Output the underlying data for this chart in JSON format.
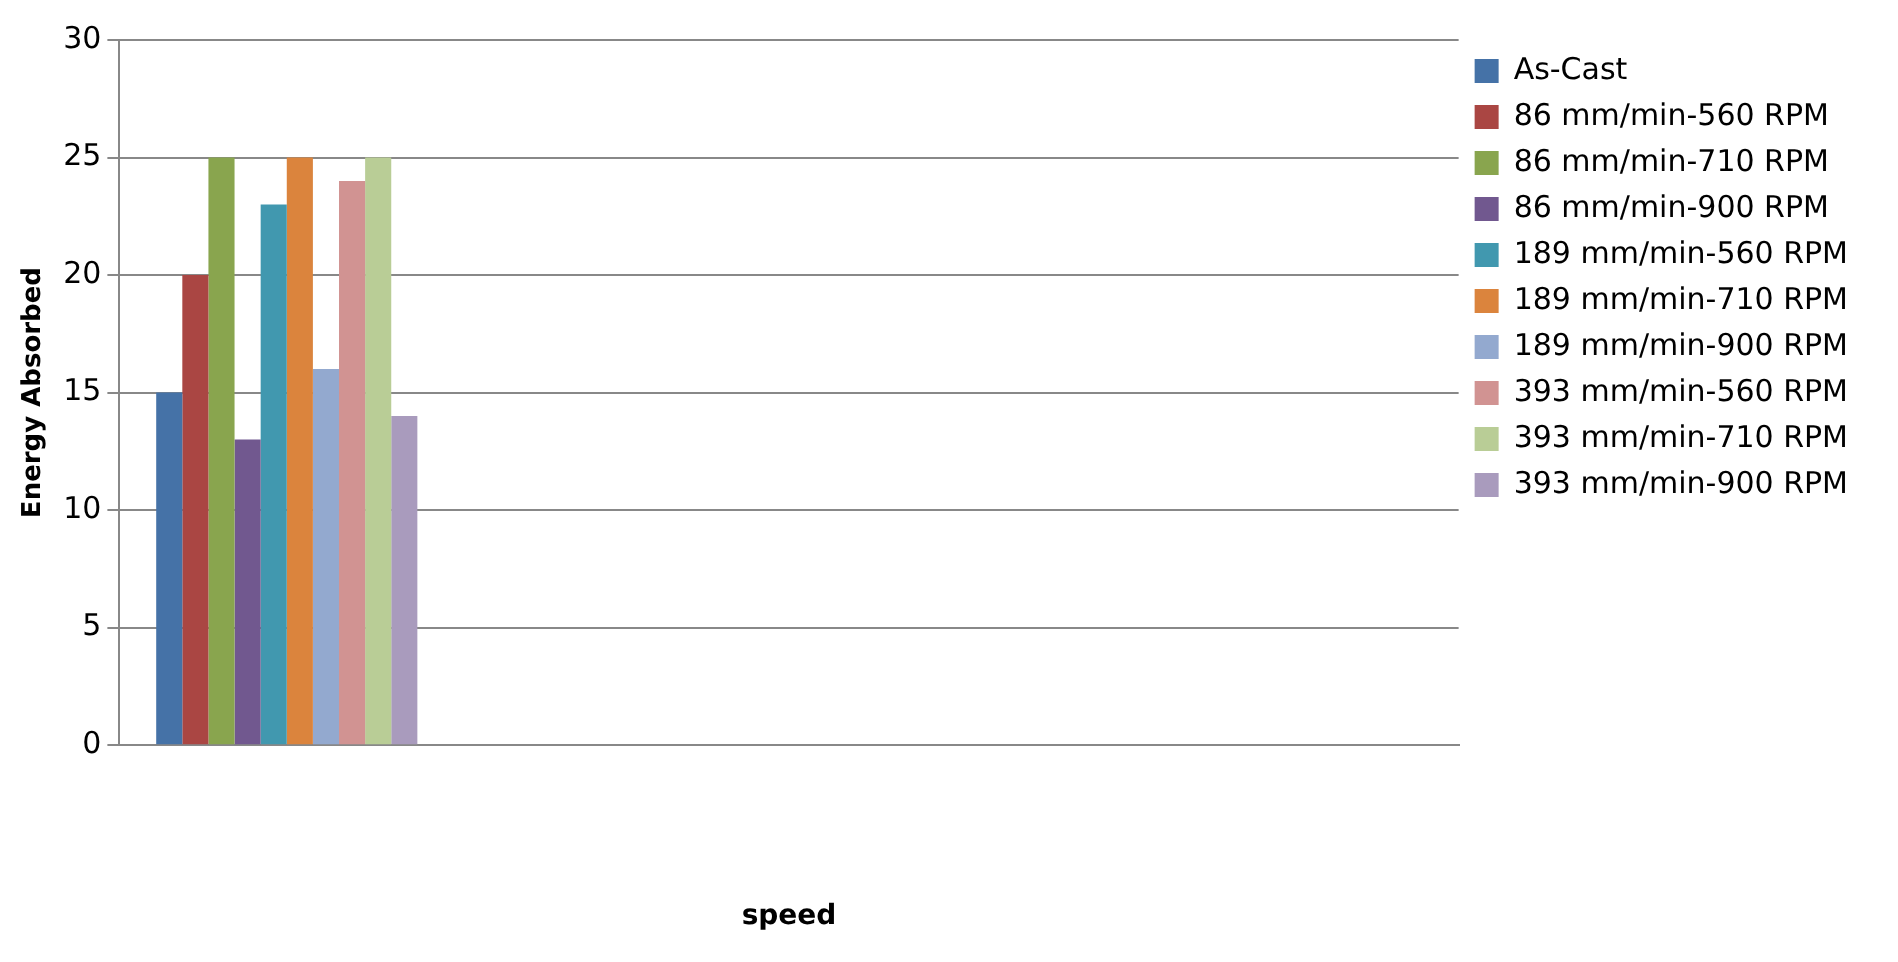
{
  "chart_data": {
    "type": "bar",
    "xlabel": "speed",
    "ylabel": "Energy Absorbed",
    "categories": [
      null,
      null,
      null,
      null
    ],
    "series": [
      {
        "name": "As-Cast",
        "color": "#4572a7",
        "values": [
          15,
          null,
          null,
          null
        ]
      },
      {
        "name": "86 mm/min-560 RPM",
        "color": "#aa4643",
        "values": [
          20,
          null,
          null,
          null
        ]
      },
      {
        "name": "86 mm/min-710 RPM",
        "color": "#89a54e",
        "values": [
          25,
          null,
          null,
          null
        ]
      },
      {
        "name": "86 mm/min-900 RPM",
        "color": "#71588f",
        "values": [
          13,
          null,
          null,
          null
        ]
      },
      {
        "name": "189 mm/min-560 RPM",
        "color": "#4198af",
        "values": [
          23,
          null,
          null,
          null
        ]
      },
      {
        "name": "189 mm/min-710 RPM",
        "color": "#db843d",
        "values": [
          25,
          null,
          null,
          null
        ]
      },
      {
        "name": "189 mm/min-900 RPM",
        "color": "#93a9cf",
        "values": [
          16,
          null,
          null,
          null
        ]
      },
      {
        "name": "393 mm/min-560 RPM",
        "color": "#d19392",
        "values": [
          24,
          null,
          null,
          null
        ]
      },
      {
        "name": "393 mm/min-710 RPM",
        "color": "#b9cd96",
        "values": [
          25,
          null,
          null,
          null
        ]
      },
      {
        "name": "393 mm/min-900 RPM",
        "color": "#a99bbd",
        "values": [
          14,
          null,
          null,
          null
        ]
      }
    ],
    "ylim": [
      0,
      30
    ],
    "yticks": [
      0,
      5,
      10,
      15,
      20,
      25,
      30
    ],
    "grid": "y",
    "legend": "right"
  }
}
